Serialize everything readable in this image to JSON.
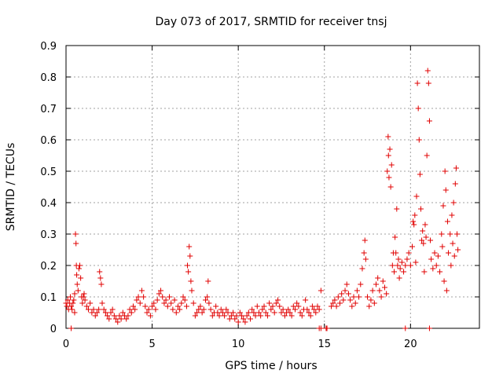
{
  "chart_data": {
    "type": "scatter",
    "title": "Day 073 of 2017, SRMTID for receiver tnsj",
    "xlabel": "GPS time / hours",
    "ylabel": "SRMTID / TECUs",
    "xlim": [
      0,
      24
    ],
    "ylim": [
      0,
      0.9
    ],
    "x_ticks": [
      0,
      5,
      10,
      15,
      20
    ],
    "x_tick_labels": [
      "0",
      "5",
      "10",
      "15",
      "20"
    ],
    "y_ticks": [
      0,
      0.1,
      0.2,
      0.3,
      0.4,
      0.5,
      0.6,
      0.7,
      0.8,
      0.9
    ],
    "y_tick_labels": [
      "0",
      "0.1",
      "0.2",
      "0.3",
      "0.4",
      "0.5",
      "0.6",
      "0.7",
      "0.8",
      "0.9"
    ],
    "grid": true,
    "marker": "+",
    "color": "#e00000",
    "series": [
      {
        "name": "SRMTID",
        "points": [
          [
            0.0,
            0.08
          ],
          [
            0.05,
            0.07
          ],
          [
            0.1,
            0.09
          ],
          [
            0.15,
            0.06
          ],
          [
            0.2,
            0.08
          ],
          [
            0.25,
            0.1
          ],
          [
            0.3,
            0.07
          ],
          [
            0.35,
            0.06
          ],
          [
            0.4,
            0.08
          ],
          [
            0.45,
            0.09
          ],
          [
            0.5,
            0.11
          ],
          [
            0.5,
            0.05
          ],
          [
            0.3,
            0.0
          ],
          [
            0.55,
            0.3
          ],
          [
            0.58,
            0.27
          ],
          [
            0.6,
            0.2
          ],
          [
            0.62,
            0.17
          ],
          [
            0.65,
            0.14
          ],
          [
            0.7,
            0.12
          ],
          [
            0.75,
            0.19
          ],
          [
            0.8,
            0.2
          ],
          [
            0.85,
            0.16
          ],
          [
            0.9,
            0.1
          ],
          [
            0.95,
            0.08
          ],
          [
            1.0,
            0.1
          ],
          [
            1.05,
            0.11
          ],
          [
            1.1,
            0.09
          ],
          [
            1.2,
            0.07
          ],
          [
            1.3,
            0.06
          ],
          [
            1.4,
            0.08
          ],
          [
            1.5,
            0.05
          ],
          [
            1.6,
            0.06
          ],
          [
            1.7,
            0.04
          ],
          [
            1.8,
            0.05
          ],
          [
            1.9,
            0.06
          ],
          [
            1.95,
            0.18
          ],
          [
            2.0,
            0.16
          ],
          [
            2.05,
            0.14
          ],
          [
            2.1,
            0.08
          ],
          [
            2.2,
            0.06
          ],
          [
            2.3,
            0.05
          ],
          [
            2.4,
            0.04
          ],
          [
            2.5,
            0.03
          ],
          [
            2.6,
            0.05
          ],
          [
            2.7,
            0.06
          ],
          [
            2.8,
            0.04
          ],
          [
            2.9,
            0.03
          ],
          [
            3.0,
            0.02
          ],
          [
            3.1,
            0.04
          ],
          [
            3.2,
            0.03
          ],
          [
            3.3,
            0.05
          ],
          [
            3.4,
            0.04
          ],
          [
            3.5,
            0.03
          ],
          [
            3.6,
            0.04
          ],
          [
            3.7,
            0.06
          ],
          [
            3.8,
            0.05
          ],
          [
            3.9,
            0.07
          ],
          [
            4.0,
            0.06
          ],
          [
            4.1,
            0.09
          ],
          [
            4.2,
            0.1
          ],
          [
            4.3,
            0.08
          ],
          [
            4.4,
            0.12
          ],
          [
            4.5,
            0.1
          ],
          [
            4.6,
            0.07
          ],
          [
            4.7,
            0.05
          ],
          [
            4.8,
            0.06
          ],
          [
            4.9,
            0.04
          ],
          [
            5.0,
            0.07
          ],
          [
            5.1,
            0.08
          ],
          [
            5.2,
            0.06
          ],
          [
            5.3,
            0.09
          ],
          [
            5.4,
            0.11
          ],
          [
            5.5,
            0.12
          ],
          [
            5.6,
            0.1
          ],
          [
            5.7,
            0.08
          ],
          [
            5.8,
            0.09
          ],
          [
            5.9,
            0.07
          ],
          [
            6.0,
            0.1
          ],
          [
            6.1,
            0.08
          ],
          [
            6.2,
            0.06
          ],
          [
            6.3,
            0.09
          ],
          [
            6.4,
            0.05
          ],
          [
            6.5,
            0.07
          ],
          [
            6.6,
            0.06
          ],
          [
            6.7,
            0.08
          ],
          [
            6.8,
            0.1
          ],
          [
            6.9,
            0.09
          ],
          [
            7.0,
            0.07
          ],
          [
            7.05,
            0.2
          ],
          [
            7.1,
            0.18
          ],
          [
            7.15,
            0.26
          ],
          [
            7.2,
            0.23
          ],
          [
            7.25,
            0.15
          ],
          [
            7.3,
            0.12
          ],
          [
            7.4,
            0.08
          ],
          [
            7.5,
            0.04
          ],
          [
            7.6,
            0.05
          ],
          [
            7.7,
            0.06
          ],
          [
            7.8,
            0.07
          ],
          [
            7.9,
            0.05
          ],
          [
            8.0,
            0.06
          ],
          [
            8.1,
            0.09
          ],
          [
            8.2,
            0.1
          ],
          [
            8.25,
            0.15
          ],
          [
            8.3,
            0.08
          ],
          [
            8.4,
            0.06
          ],
          [
            8.5,
            0.04
          ],
          [
            8.6,
            0.05
          ],
          [
            8.7,
            0.07
          ],
          [
            8.8,
            0.05
          ],
          [
            8.9,
            0.04
          ],
          [
            9.0,
            0.06
          ],
          [
            9.1,
            0.05
          ],
          [
            9.2,
            0.04
          ],
          [
            9.3,
            0.06
          ],
          [
            9.4,
            0.05
          ],
          [
            9.5,
            0.03
          ],
          [
            9.6,
            0.04
          ],
          [
            9.7,
            0.05
          ],
          [
            9.8,
            0.03
          ],
          [
            9.9,
            0.04
          ],
          [
            10.0,
            0.02
          ],
          [
            10.1,
            0.05
          ],
          [
            10.2,
            0.04
          ],
          [
            10.3,
            0.03
          ],
          [
            10.4,
            0.02
          ],
          [
            10.5,
            0.04
          ],
          [
            10.6,
            0.05
          ],
          [
            10.7,
            0.03
          ],
          [
            10.8,
            0.06
          ],
          [
            10.9,
            0.05
          ],
          [
            11.0,
            0.04
          ],
          [
            11.1,
            0.07
          ],
          [
            11.2,
            0.05
          ],
          [
            11.3,
            0.04
          ],
          [
            11.4,
            0.06
          ],
          [
            11.5,
            0.07
          ],
          [
            11.6,
            0.05
          ],
          [
            11.7,
            0.04
          ],
          [
            11.8,
            0.08
          ],
          [
            11.9,
            0.06
          ],
          [
            12.0,
            0.07
          ],
          [
            12.1,
            0.05
          ],
          [
            12.2,
            0.08
          ],
          [
            12.3,
            0.09
          ],
          [
            12.4,
            0.07
          ],
          [
            12.5,
            0.05
          ],
          [
            12.6,
            0.06
          ],
          [
            12.7,
            0.04
          ],
          [
            12.8,
            0.05
          ],
          [
            12.9,
            0.06
          ],
          [
            13.0,
            0.05
          ],
          [
            13.1,
            0.04
          ],
          [
            13.2,
            0.07
          ],
          [
            13.3,
            0.06
          ],
          [
            13.4,
            0.08
          ],
          [
            13.5,
            0.07
          ],
          [
            13.6,
            0.05
          ],
          [
            13.7,
            0.04
          ],
          [
            13.8,
            0.06
          ],
          [
            13.9,
            0.09
          ],
          [
            14.0,
            0.06
          ],
          [
            14.1,
            0.05
          ],
          [
            14.2,
            0.04
          ],
          [
            14.3,
            0.07
          ],
          [
            14.4,
            0.06
          ],
          [
            14.5,
            0.05
          ],
          [
            14.6,
            0.07
          ],
          [
            14.7,
            0.06
          ],
          [
            14.8,
            0.12
          ],
          [
            14.7,
            0.0
          ],
          [
            14.8,
            0.0
          ],
          [
            15.1,
            0.0
          ],
          [
            15.15,
            0.0
          ],
          [
            15.4,
            0.07
          ],
          [
            15.5,
            0.08
          ],
          [
            15.6,
            0.09
          ],
          [
            15.7,
            0.07
          ],
          [
            15.8,
            0.1
          ],
          [
            15.9,
            0.08
          ],
          [
            16.0,
            0.11
          ],
          [
            16.1,
            0.09
          ],
          [
            16.2,
            0.12
          ],
          [
            16.3,
            0.14
          ],
          [
            16.4,
            0.11
          ],
          [
            16.5,
            0.09
          ],
          [
            16.6,
            0.07
          ],
          [
            16.7,
            0.1
          ],
          [
            16.8,
            0.08
          ],
          [
            16.9,
            0.12
          ],
          [
            17.0,
            0.1
          ],
          [
            17.1,
            0.14
          ],
          [
            17.2,
            0.19
          ],
          [
            17.3,
            0.24
          ],
          [
            17.35,
            0.28
          ],
          [
            17.4,
            0.22
          ],
          [
            17.5,
            0.1
          ],
          [
            17.6,
            0.07
          ],
          [
            17.7,
            0.09
          ],
          [
            17.8,
            0.12
          ],
          [
            17.9,
            0.08
          ],
          [
            18.0,
            0.14
          ],
          [
            18.1,
            0.16
          ],
          [
            18.2,
            0.12
          ],
          [
            18.3,
            0.1
          ],
          [
            18.4,
            0.15
          ],
          [
            18.5,
            0.13
          ],
          [
            18.6,
            0.11
          ],
          [
            18.65,
            0.5
          ],
          [
            18.7,
            0.61
          ],
          [
            18.72,
            0.55
          ],
          [
            18.75,
            0.48
          ],
          [
            18.8,
            0.57
          ],
          [
            18.85,
            0.45
          ],
          [
            18.9,
            0.52
          ],
          [
            18.95,
            0.2
          ],
          [
            19.0,
            0.24
          ],
          [
            19.05,
            0.18
          ],
          [
            19.1,
            0.29
          ],
          [
            19.15,
            0.24
          ],
          [
            19.2,
            0.38
          ],
          [
            19.25,
            0.2
          ],
          [
            19.3,
            0.22
          ],
          [
            19.35,
            0.16
          ],
          [
            19.4,
            0.19
          ],
          [
            19.5,
            0.21
          ],
          [
            19.6,
            0.18
          ],
          [
            19.7,
            0.2
          ],
          [
            19.8,
            0.22
          ],
          [
            19.9,
            0.24
          ],
          [
            19.7,
            0.0
          ],
          [
            20.0,
            0.2
          ],
          [
            20.1,
            0.26
          ],
          [
            20.15,
            0.34
          ],
          [
            20.2,
            0.33
          ],
          [
            20.25,
            0.36
          ],
          [
            20.3,
            0.21
          ],
          [
            20.35,
            0.42
          ],
          [
            20.4,
            0.78
          ],
          [
            20.45,
            0.7
          ],
          [
            20.5,
            0.6
          ],
          [
            20.55,
            0.49
          ],
          [
            20.6,
            0.38
          ],
          [
            20.65,
            0.28
          ],
          [
            20.7,
            0.31
          ],
          [
            20.75,
            0.27
          ],
          [
            20.8,
            0.18
          ],
          [
            20.85,
            0.33
          ],
          [
            20.9,
            0.29
          ],
          [
            20.95,
            0.55
          ],
          [
            21.0,
            0.82
          ],
          [
            21.05,
            0.78
          ],
          [
            21.1,
            0.66
          ],
          [
            21.15,
            0.28
          ],
          [
            21.1,
            0.0
          ],
          [
            21.2,
            0.22
          ],
          [
            21.3,
            0.19
          ],
          [
            21.4,
            0.24
          ],
          [
            21.5,
            0.2
          ],
          [
            21.6,
            0.23
          ],
          [
            21.7,
            0.18
          ],
          [
            21.8,
            0.3
          ],
          [
            21.85,
            0.26
          ],
          [
            21.9,
            0.39
          ],
          [
            21.95,
            0.15
          ],
          [
            22.0,
            0.5
          ],
          [
            22.05,
            0.44
          ],
          [
            22.1,
            0.12
          ],
          [
            22.15,
            0.34
          ],
          [
            22.2,
            0.24
          ],
          [
            22.3,
            0.3
          ],
          [
            22.35,
            0.2
          ],
          [
            22.4,
            0.36
          ],
          [
            22.45,
            0.27
          ],
          [
            22.5,
            0.4
          ],
          [
            22.55,
            0.23
          ],
          [
            22.6,
            0.46
          ],
          [
            22.65,
            0.51
          ],
          [
            22.7,
            0.3
          ],
          [
            22.75,
            0.25
          ]
        ]
      }
    ]
  }
}
